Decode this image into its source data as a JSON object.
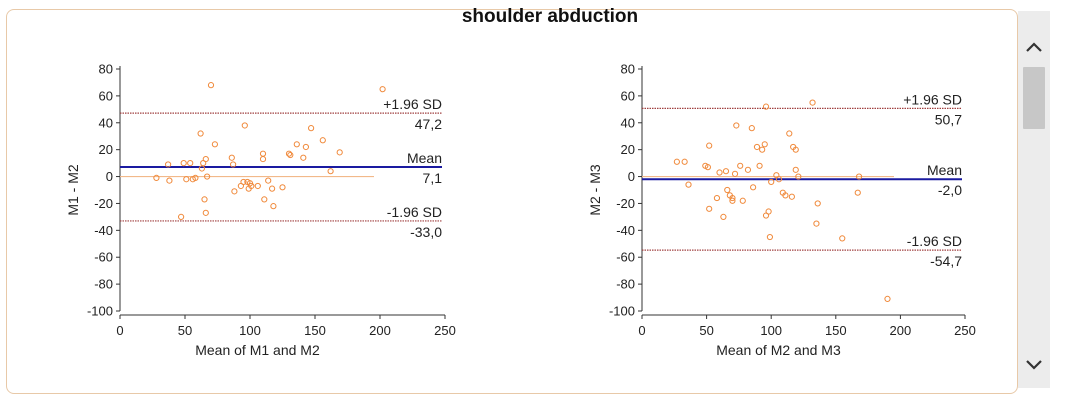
{
  "title": "shoulder abduction",
  "chart_data": [
    {
      "type": "scatter",
      "title": "",
      "xlabel": "Mean of M1 and M2",
      "ylabel": "M1 - M2",
      "xlim": [
        0,
        250
      ],
      "ylim": [
        -100,
        80
      ],
      "xticks": [
        "0",
        "50",
        "100",
        "150",
        "200",
        "250"
      ],
      "yticks": [
        "80",
        "60",
        "40",
        "20",
        "0",
        "-20",
        "-40",
        "-60",
        "-80",
        "-100"
      ],
      "grid": false,
      "lines": {
        "upper": {
          "label": "+1.96 SD",
          "value": 47.2,
          "value_text": "47,2"
        },
        "mean": {
          "label": "Mean",
          "value": 7.1,
          "value_text": "7,1"
        },
        "lower": {
          "label": "-1.96 SD",
          "value": -33.0,
          "value_text": "-33,0"
        }
      },
      "zero_line_color": "#f2b98a",
      "mean_line_color": "#1a1aa0",
      "sd_line_color": "#a04040",
      "point_color": "#f08a3c",
      "points": [
        [
          28,
          -1
        ],
        [
          37,
          9
        ],
        [
          38,
          -3
        ],
        [
          47,
          -30
        ],
        [
          49,
          10
        ],
        [
          51,
          -2
        ],
        [
          54,
          10
        ],
        [
          56,
          -2
        ],
        [
          58,
          -1
        ],
        [
          62,
          32
        ],
        [
          63,
          6
        ],
        [
          64,
          10
        ],
        [
          65,
          -17
        ],
        [
          66,
          -27
        ],
        [
          66,
          13
        ],
        [
          67,
          0
        ],
        [
          70,
          68
        ],
        [
          73,
          24
        ],
        [
          86,
          14
        ],
        [
          87,
          9
        ],
        [
          88,
          -11
        ],
        [
          93,
          -7
        ],
        [
          95,
          -4
        ],
        [
          96,
          38
        ],
        [
          98,
          -4
        ],
        [
          99,
          -9
        ],
        [
          100,
          -5
        ],
        [
          101,
          -7
        ],
        [
          106,
          -7
        ],
        [
          110,
          17
        ],
        [
          110,
          13
        ],
        [
          111,
          -17
        ],
        [
          114,
          -3
        ],
        [
          117,
          -9
        ],
        [
          118,
          -22
        ],
        [
          125,
          -8
        ],
        [
          130,
          17
        ],
        [
          131,
          16
        ],
        [
          136,
          24
        ],
        [
          141,
          14
        ],
        [
          143,
          22
        ],
        [
          147,
          36
        ],
        [
          156,
          27
        ],
        [
          162,
          4
        ],
        [
          169,
          18
        ],
        [
          202,
          65
        ]
      ]
    },
    {
      "type": "scatter",
      "title": "",
      "xlabel": "Mean of M2 and M3",
      "ylabel": "M2 - M3",
      "xlim": [
        0,
        250
      ],
      "ylim": [
        -100,
        80
      ],
      "xticks": [
        "0",
        "50",
        "100",
        "150",
        "200",
        "250"
      ],
      "yticks": [
        "80",
        "60",
        "40",
        "20",
        "0",
        "-20",
        "-40",
        "-60",
        "-80",
        "-100"
      ],
      "grid": false,
      "lines": {
        "upper": {
          "label": "+1.96 SD",
          "value": 50.7,
          "value_text": "50,7"
        },
        "mean": {
          "label": "Mean",
          "value": -2.0,
          "value_text": "-2,0"
        },
        "lower": {
          "label": "-1.96 SD",
          "value": -54.7,
          "value_text": "-54,7"
        }
      },
      "zero_line_color": "#f2b98a",
      "mean_line_color": "#1a1aa0",
      "sd_line_color": "#a04040",
      "point_color": "#f08a3c",
      "points": [
        [
          27,
          11
        ],
        [
          33,
          11
        ],
        [
          36,
          -6
        ],
        [
          49,
          8
        ],
        [
          51,
          7
        ],
        [
          52,
          23
        ],
        [
          52,
          -24
        ],
        [
          58,
          -16
        ],
        [
          60,
          3
        ],
        [
          63,
          -30
        ],
        [
          65,
          4
        ],
        [
          66,
          -10
        ],
        [
          68,
          -14
        ],
        [
          70,
          -16
        ],
        [
          70,
          -18
        ],
        [
          72,
          2
        ],
        [
          73,
          38
        ],
        [
          76,
          8
        ],
        [
          78,
          -18
        ],
        [
          82,
          5
        ],
        [
          85,
          36
        ],
        [
          86,
          -8
        ],
        [
          89,
          22
        ],
        [
          91,
          8
        ],
        [
          93,
          20
        ],
        [
          95,
          24
        ],
        [
          96,
          52
        ],
        [
          96,
          -29
        ],
        [
          98,
          -26
        ],
        [
          99,
          -45
        ],
        [
          100,
          -4
        ],
        [
          104,
          1
        ],
        [
          106,
          -2
        ],
        [
          109,
          -12
        ],
        [
          111,
          -14
        ],
        [
          114,
          32
        ],
        [
          116,
          -15
        ],
        [
          117,
          22
        ],
        [
          119,
          20
        ],
        [
          119,
          5
        ],
        [
          121,
          0
        ],
        [
          132,
          55
        ],
        [
          135,
          -35
        ],
        [
          136,
          -20
        ],
        [
          155,
          -46
        ],
        [
          167,
          -12
        ],
        [
          168,
          0
        ],
        [
          190,
          -91
        ]
      ]
    }
  ],
  "scrollbar": {
    "up_icon": "chevron-up-icon",
    "down_icon": "chevron-down-icon"
  }
}
